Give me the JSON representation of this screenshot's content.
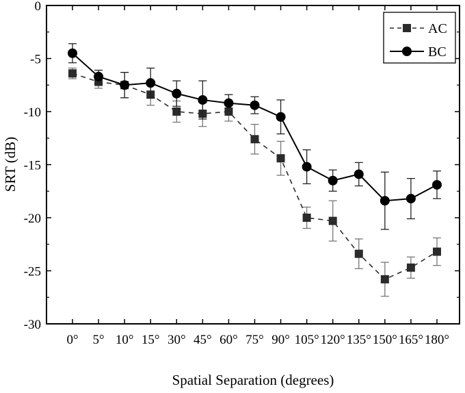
{
  "chart_data": {
    "type": "line",
    "title": "",
    "xlabel": "Spatial Separation (degrees)",
    "ylabel": "SRT  (dB)",
    "categories": [
      "0°",
      "5°",
      "10°",
      "15°",
      "30°",
      "45°",
      "60°",
      "75°",
      "90°",
      "105°",
      "120°",
      "135°",
      "150°",
      "165°",
      "180°"
    ],
    "ylim": [
      -30,
      0
    ],
    "yticks": [
      0,
      -5,
      -10,
      -15,
      -20,
      -25,
      -30
    ],
    "grid": false,
    "legend_position": "top-right",
    "series": [
      {
        "name": "AC",
        "style": "dashed",
        "marker": "square",
        "color": "#2b2b2b",
        "values": [
          -6.4,
          -7.2,
          -7.5,
          -8.4,
          -10.0,
          -10.2,
          -10.0,
          -12.6,
          -14.4,
          -20.0,
          -20.3,
          -23.4,
          -25.8,
          -24.7,
          -23.2
        ],
        "errors": [
          0.5,
          0.6,
          1.2,
          1.0,
          1.0,
          1.2,
          0.9,
          1.4,
          1.6,
          1.0,
          1.9,
          1.4,
          1.6,
          1.0,
          1.3
        ]
      },
      {
        "name": "BC",
        "style": "solid",
        "marker": "circle",
        "color": "#000000",
        "values": [
          -4.5,
          -6.7,
          -7.5,
          -7.3,
          -8.3,
          -8.9,
          -9.2,
          -9.4,
          -10.5,
          -15.2,
          -16.5,
          -15.9,
          -18.4,
          -18.2,
          -16.9
        ],
        "errors": [
          0.9,
          0.6,
          1.2,
          1.4,
          1.2,
          1.8,
          0.8,
          0.8,
          1.6,
          1.6,
          1.0,
          1.1,
          2.7,
          1.9,
          1.3
        ]
      }
    ]
  }
}
